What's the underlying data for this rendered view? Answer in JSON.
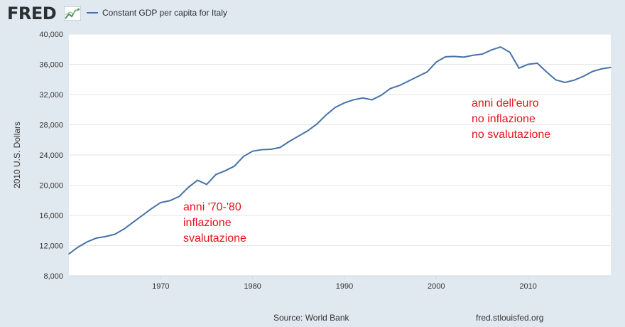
{
  "header": {
    "logo_text": "FRED",
    "legend_label": "Constant GDP per capita for Italy"
  },
  "footer": {
    "source": "Source: World Bank",
    "site": "fred.stlouisfed.org"
  },
  "colors": {
    "series": "#4572a7",
    "annotation": "#e8111a",
    "plot_bg": "#ffffff",
    "page_bg": "#e1e9f0",
    "grid": "#e3e3e3"
  },
  "chart_data": {
    "type": "line",
    "title": "",
    "xlabel": "",
    "ylabel": "2010 U.S. Dollars",
    "xlim": [
      1960,
      2019
    ],
    "ylim": [
      8000,
      40000
    ],
    "grid": true,
    "legend_position": "top-left",
    "x_ticks": [
      1970,
      1980,
      1990,
      2000,
      2010
    ],
    "y_ticks": [
      "8,000",
      "12,000",
      "16,000",
      "20,000",
      "24,000",
      "28,000",
      "32,000",
      "36,000",
      "40,000"
    ],
    "series": [
      {
        "name": "Constant GDP per capita for Italy",
        "x": [
          1960,
          1961,
          1962,
          1963,
          1964,
          1965,
          1966,
          1967,
          1968,
          1969,
          1970,
          1971,
          1972,
          1973,
          1974,
          1975,
          1976,
          1977,
          1978,
          1979,
          1980,
          1981,
          1982,
          1983,
          1984,
          1985,
          1986,
          1987,
          1988,
          1989,
          1990,
          1991,
          1992,
          1993,
          1994,
          1995,
          1996,
          1997,
          1998,
          1999,
          2000,
          2001,
          2002,
          2003,
          2004,
          2005,
          2006,
          2007,
          2008,
          2009,
          2010,
          2011,
          2012,
          2013,
          2014,
          2015,
          2016,
          2017,
          2018,
          2019
        ],
        "values": [
          10900,
          11800,
          12500,
          13000,
          13200,
          13500,
          14200,
          15100,
          16000,
          16900,
          17700,
          17950,
          18500,
          19700,
          20650,
          20100,
          21400,
          21900,
          22500,
          23800,
          24500,
          24700,
          24750,
          25000,
          25800,
          26500,
          27200,
          28100,
          29300,
          30300,
          30900,
          31300,
          31550,
          31300,
          31900,
          32800,
          33200,
          33800,
          34400,
          35000,
          36300,
          37000,
          37050,
          36950,
          37200,
          37350,
          37900,
          38300,
          37600,
          35500,
          36000,
          36150,
          35000,
          33950,
          33600,
          33900,
          34400,
          35050,
          35400,
          35600
        ]
      }
    ],
    "annotations": [
      {
        "lines": [
          "anni '70-'80",
          "inflazione",
          "svalutazione"
        ]
      },
      {
        "lines": [
          "anni dell'euro",
          "no inflazione",
          "no svalutazione"
        ]
      }
    ]
  }
}
